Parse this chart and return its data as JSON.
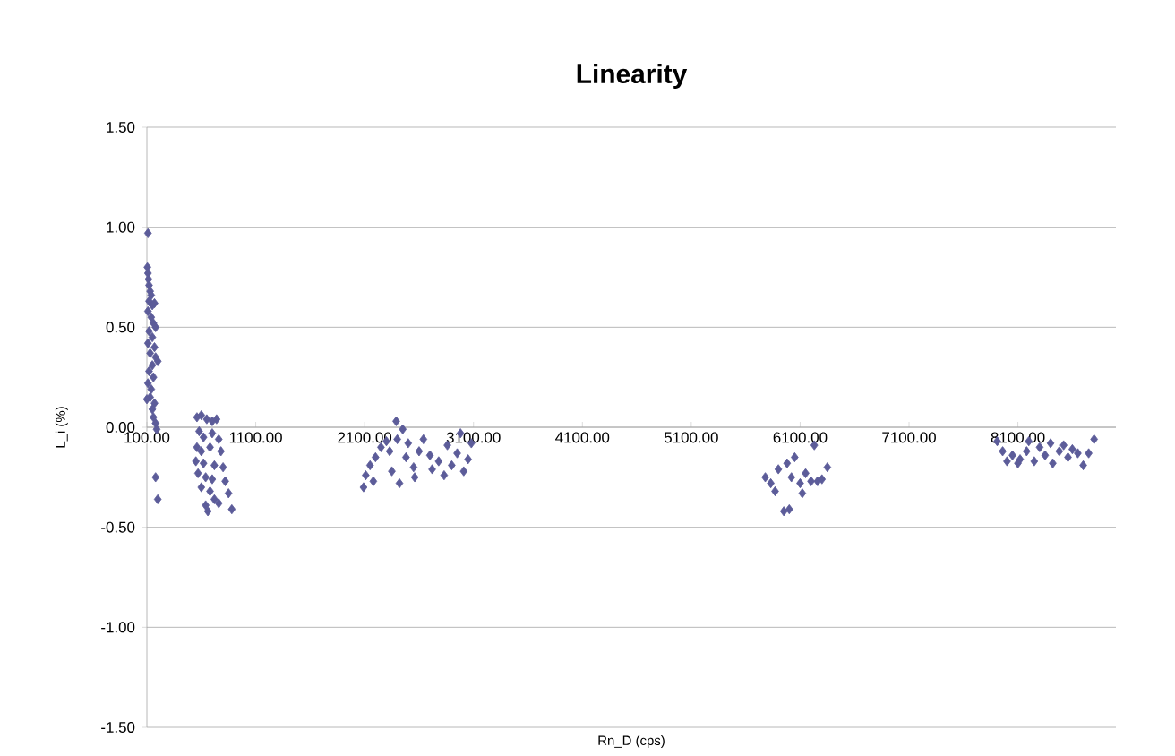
{
  "chart_data": {
    "type": "scatter",
    "title": "Linearity",
    "xlabel": "Rn_D (cps)",
    "ylabel": "L_i (%)",
    "xlim": [
      100,
      9000
    ],
    "ylim": [
      -1.5,
      1.5
    ],
    "xticks": [
      {
        "value": 100,
        "label": "100.00"
      },
      {
        "value": 1100,
        "label": "1100.00"
      },
      {
        "value": 2100,
        "label": "2100.00"
      },
      {
        "value": 3100,
        "label": "3100.00"
      },
      {
        "value": 4100,
        "label": "4100.00"
      },
      {
        "value": 5100,
        "label": "5100.00"
      },
      {
        "value": 6100,
        "label": "6100.00"
      },
      {
        "value": 7100,
        "label": "7100.00"
      },
      {
        "value": 8100,
        "label": "8100.00"
      }
    ],
    "yticks": [
      {
        "value": -1.5,
        "label": "-1.50"
      },
      {
        "value": -1,
        "label": "-1.00"
      },
      {
        "value": -0.5,
        "label": "-0.50"
      },
      {
        "value": 0,
        "label": "0.00"
      },
      {
        "value": 0.5,
        "label": "0.50"
      },
      {
        "value": 1,
        "label": "1.00"
      },
      {
        "value": 1.5,
        "label": "1.50"
      }
    ],
    "grid": "y",
    "marker": "diamond",
    "color": "#5c5c99",
    "x": [
      110,
      105,
      110,
      115,
      120,
      130,
      140,
      120,
      150,
      170,
      110,
      140,
      160,
      180,
      120,
      150,
      110,
      170,
      130,
      180,
      200,
      150,
      120,
      160,
      110,
      140,
      130,
      100,
      170,
      150,
      160,
      180,
      190,
      180,
      200,
      560,
      600,
      650,
      700,
      740,
      580,
      620,
      700,
      760,
      560,
      600,
      680,
      780,
      550,
      620,
      720,
      800,
      570,
      640,
      700,
      820,
      600,
      680,
      850,
      720,
      640,
      660,
      880,
      760,
      2090,
      2110,
      2150,
      2200,
      2250,
      2300,
      2350,
      2420,
      2400,
      2390,
      2450,
      2500,
      2480,
      2550,
      2600,
      2640,
      2700,
      2720,
      2780,
      2830,
      2860,
      2900,
      2950,
      2980,
      3010,
      3050,
      3080,
      2180,
      2330,
      2560,
      5780,
      5830,
      5870,
      5900,
      5950,
      6000,
      5980,
      6050,
      6100,
      6120,
      6150,
      6200,
      6230,
      6260,
      6300,
      6350,
      6020,
      7910,
      7960,
      8000,
      8050,
      8120,
      8180,
      8200,
      8250,
      8300,
      8350,
      8400,
      8420,
      8480,
      8520,
      8560,
      8600,
      8650,
      8700,
      8750,
      8800,
      8100
    ],
    "values": [
      0.97,
      0.8,
      0.77,
      0.74,
      0.71,
      0.68,
      0.66,
      0.63,
      0.61,
      0.62,
      0.58,
      0.55,
      0.52,
      0.5,
      0.48,
      0.45,
      0.42,
      0.4,
      0.37,
      0.35,
      0.33,
      0.31,
      0.28,
      0.25,
      0.22,
      0.19,
      0.15,
      0.14,
      0.12,
      0.09,
      0.05,
      0.02,
      -0.01,
      -0.25,
      -0.36,
      0.05,
      0.06,
      0.04,
      0.03,
      0.04,
      -0.02,
      -0.05,
      -0.03,
      -0.06,
      -0.1,
      -0.12,
      -0.1,
      -0.12,
      -0.17,
      -0.18,
      -0.19,
      -0.2,
      -0.23,
      -0.25,
      -0.26,
      -0.27,
      -0.3,
      -0.32,
      -0.33,
      -0.36,
      -0.39,
      -0.42,
      -0.41,
      -0.38,
      -0.3,
      -0.24,
      -0.19,
      -0.15,
      -0.1,
      -0.07,
      -0.22,
      -0.28,
      -0.06,
      0.03,
      -0.01,
      -0.08,
      -0.15,
      -0.2,
      -0.12,
      -0.06,
      -0.14,
      -0.21,
      -0.17,
      -0.24,
      -0.09,
      -0.19,
      -0.13,
      -0.03,
      -0.22,
      -0.16,
      -0.08,
      -0.27,
      -0.12,
      -0.25,
      -0.25,
      -0.28,
      -0.32,
      -0.21,
      -0.42,
      -0.41,
      -0.18,
      -0.15,
      -0.28,
      -0.33,
      -0.23,
      -0.27,
      -0.09,
      -0.27,
      -0.26,
      -0.2,
      -0.25,
      -0.07,
      -0.12,
      -0.17,
      -0.14,
      -0.16,
      -0.12,
      -0.07,
      -0.17,
      -0.1,
      -0.14,
      -0.08,
      -0.18,
      -0.12,
      -0.09,
      -0.15,
      -0.11,
      -0.13,
      -0.19,
      -0.13,
      -0.06,
      -0.18
    ]
  }
}
